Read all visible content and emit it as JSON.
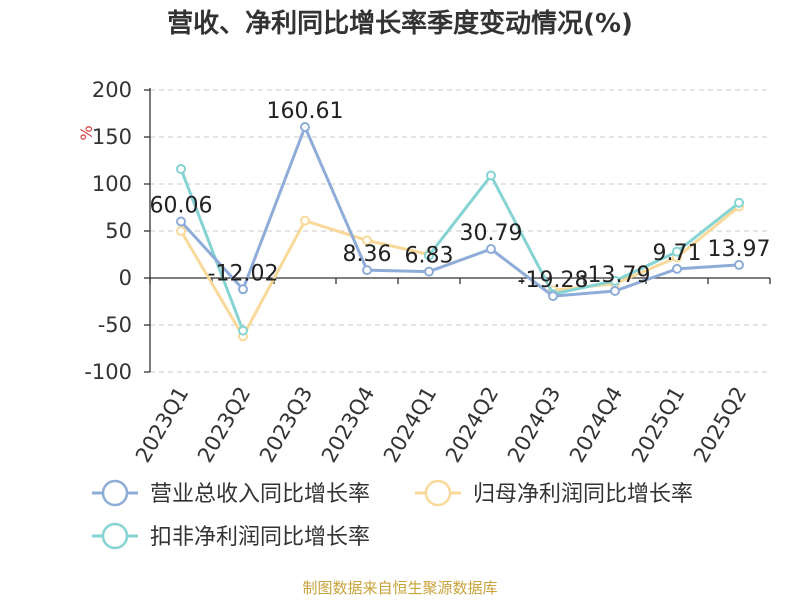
{
  "chart_data": {
    "type": "line",
    "title": "营收、净利同比增长率季度变动情况(%)",
    "ylabel": "%",
    "xlabel": "",
    "ylim": [
      -100,
      200
    ],
    "yticks": [
      200,
      150,
      100,
      50,
      0,
      -50,
      -100
    ],
    "categories": [
      "2023Q1",
      "2023Q2",
      "2023Q3",
      "2023Q4",
      "2024Q1",
      "2024Q2",
      "2024Q3",
      "2024Q4",
      "2025Q1",
      "2025Q2"
    ],
    "grid": true,
    "legend_position": "bottom",
    "series": [
      {
        "name": "营业总收入同比增长率",
        "color": "#8eacd8",
        "values": [
          60.06,
          -12.02,
          160.61,
          8.36,
          6.83,
          30.79,
          -19.28,
          -13.79,
          9.71,
          13.97
        ],
        "labels": [
          "60.06",
          "-12.02",
          "160.61",
          "8.36",
          "6.83",
          "30.79",
          "-19.28",
          "-13.79",
          "9.71",
          "13.97"
        ]
      },
      {
        "name": "归母净利润同比增长率",
        "color": "#f8d99a",
        "values": [
          50,
          -62,
          61,
          40,
          25,
          null,
          -13,
          -6,
          22,
          76
        ]
      },
      {
        "name": "扣非净利润同比增长率",
        "color": "#86d3d3",
        "values": [
          116,
          -56,
          null,
          null,
          24,
          109,
          -17,
          -3,
          28,
          80
        ]
      }
    ],
    "source": "制图数据来自恒生聚源数据库"
  }
}
